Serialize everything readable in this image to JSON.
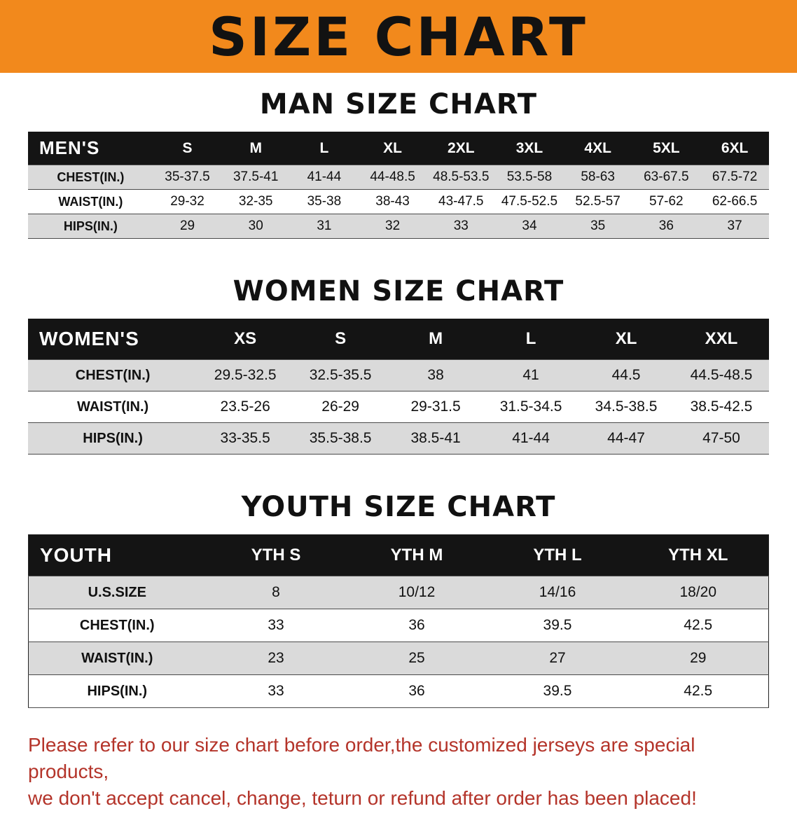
{
  "banner": {
    "title": "SIZE CHART"
  },
  "colors": {
    "banner_bg": "#F2891C",
    "table_header_bg": "#141414",
    "row_gray": "#DADADA",
    "note_red": "#B4342A"
  },
  "sections": [
    {
      "heading": "MAN SIZE CHART",
      "table": {
        "header": [
          "MEN'S",
          "S",
          "M",
          "L",
          "XL",
          "2XL",
          "3XL",
          "4XL",
          "5XL",
          "6XL"
        ],
        "rows": [
          [
            "CHEST(IN.)",
            "35-37.5",
            "37.5-41",
            "41-44",
            "44-48.5",
            "48.5-53.5",
            "53.5-58",
            "58-63",
            "63-67.5",
            "67.5-72"
          ],
          [
            "WAIST(IN.)",
            "29-32",
            "32-35",
            "35-38",
            "38-43",
            "43-47.5",
            "47.5-52.5",
            "52.5-57",
            "57-62",
            "62-66.5"
          ],
          [
            "HIPS(IN.)",
            "29",
            "30",
            "31",
            "32",
            "33",
            "34",
            "35",
            "36",
            "37"
          ]
        ]
      }
    },
    {
      "heading": "WOMEN SIZE CHART",
      "table": {
        "header": [
          "WOMEN'S",
          "XS",
          "S",
          "M",
          "L",
          "XL",
          "XXL"
        ],
        "rows": [
          [
            "CHEST(IN.)",
            "29.5-32.5",
            "32.5-35.5",
            "38",
            "41",
            "44.5",
            "44.5-48.5"
          ],
          [
            "WAIST(IN.)",
            "23.5-26",
            "26-29",
            "29-31.5",
            "31.5-34.5",
            "34.5-38.5",
            "38.5-42.5"
          ],
          [
            "HIPS(IN.)",
            "33-35.5",
            "35.5-38.5",
            "38.5-41",
            "41-44",
            "44-47",
            "47-50"
          ]
        ]
      }
    },
    {
      "heading": "YOUTH SIZE CHART",
      "table": {
        "header": [
          "YOUTH",
          "YTH S",
          "YTH M",
          "YTH L",
          "YTH XL"
        ],
        "rows": [
          [
            "U.S.SIZE",
            "8",
            "10/12",
            "14/16",
            "18/20"
          ],
          [
            "CHEST(IN.)",
            "33",
            "36",
            "39.5",
            "42.5"
          ],
          [
            "WAIST(IN.)",
            "23",
            "25",
            "27",
            "29"
          ],
          [
            "HIPS(IN.)",
            "33",
            "36",
            "39.5",
            "42.5"
          ]
        ]
      }
    }
  ],
  "note": {
    "line1": "Please refer to our size chart before order,the customized jerseys are special products,",
    "line2": "we don't accept cancel, change, teturn or refund after order has been placed!"
  }
}
